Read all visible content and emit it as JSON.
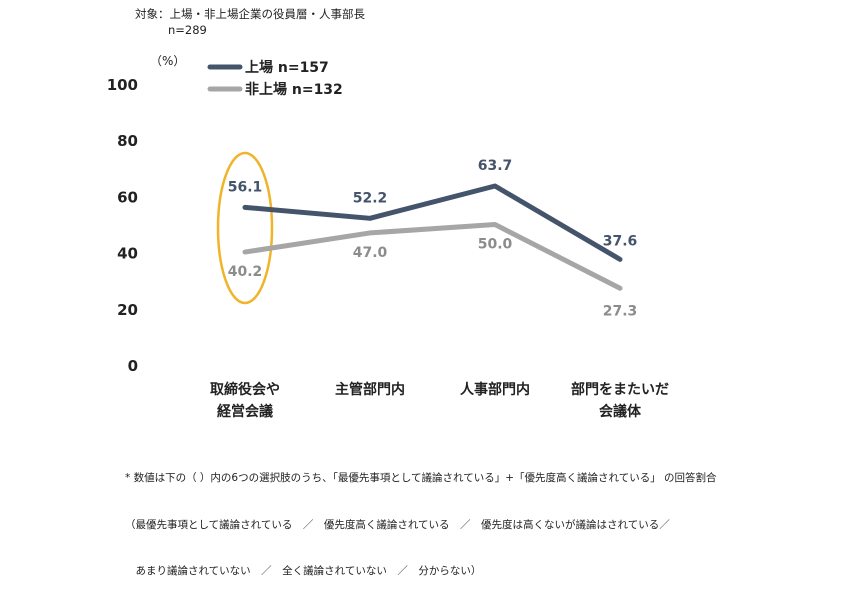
{
  "header": {
    "target_line": "対象：上場・非上場企業の役員層・人事部長",
    "sample_line": "n=289"
  },
  "footnote": {
    "line1": "* 数値は下の（ ）内の6つの選択肢のうち、「最優先事項として議論されている」+「優先度高く議論されている」 の回答割合",
    "line2": "（最優先事項として議論されている　／　優先度高く議論されている　／　優先度は高くないが議論はされている／",
    "line3": "　あまり議論されていない　／　全く議論されていない　／　分からない）"
  },
  "chart_data": {
    "type": "line",
    "unit_label": "（%）",
    "ylim": [
      0,
      100
    ],
    "yticks": [
      "0",
      "20",
      "40",
      "60",
      "80",
      "100"
    ],
    "categories": [
      "取締役会や\n経営会議",
      "主管部門内",
      "人事部門内",
      "部門をまたいだ\n会議体"
    ],
    "series": [
      {
        "name": "上場 n=157",
        "color": "#44546a",
        "values": [
          56.1,
          52.2,
          63.7,
          37.6
        ]
      },
      {
        "name": "非上場 n=132",
        "color": "#a6a6a6",
        "values": [
          40.2,
          47.0,
          50.0,
          27.3
        ]
      }
    ],
    "value_labels": [
      [
        "56.1",
        "52.2",
        "63.7",
        "37.6"
      ],
      [
        "40.2",
        "47.0",
        "50.0",
        "27.3"
      ]
    ],
    "highlight": {
      "category_index": 0,
      "color": "#f0b429"
    },
    "legend_position": "top-left",
    "grid": false
  }
}
